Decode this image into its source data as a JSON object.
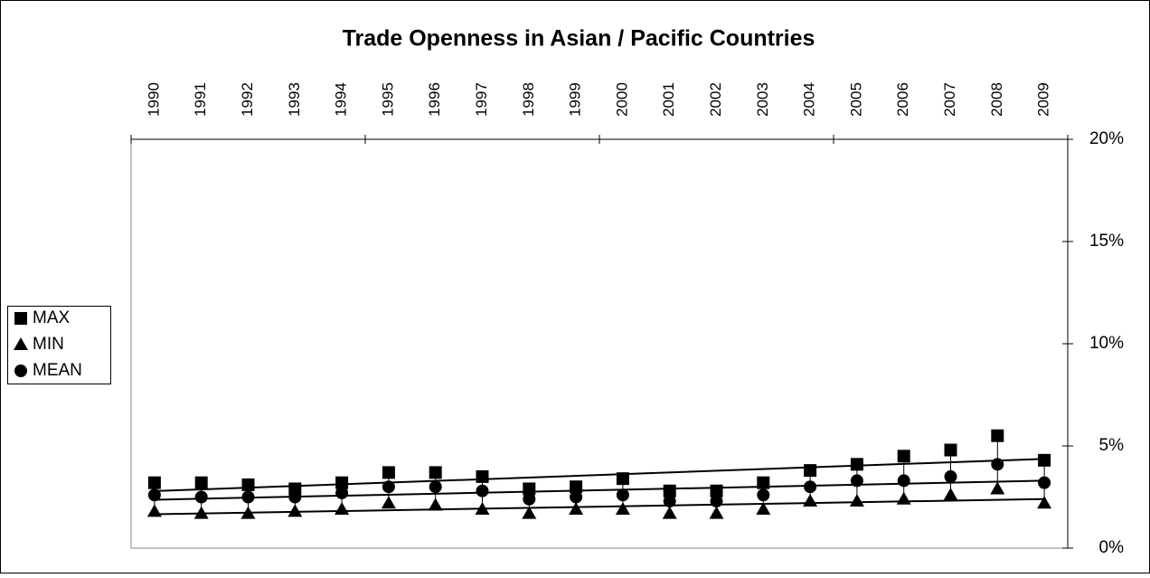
{
  "chart_data": {
    "type": "line",
    "title": "Trade Openness in Asian / Pacific Countries",
    "categories": [
      "1990",
      "1991",
      "1992",
      "1993",
      "1994",
      "1995",
      "1996",
      "1997",
      "1998",
      "1999",
      "2000",
      "2001",
      "2002",
      "2003",
      "2004",
      "2005",
      "2006",
      "2007",
      "2008",
      "2009"
    ],
    "series": [
      {
        "name": "MAX",
        "color": "#000000",
        "marker": "square",
        "values": [
          3.2,
          3.2,
          3.1,
          2.9,
          3.2,
          3.7,
          3.7,
          3.5,
          2.9,
          3.0,
          3.4,
          2.8,
          2.8,
          3.2,
          3.8,
          4.1,
          4.5,
          4.8,
          5.5,
          4.3
        ]
      },
      {
        "name": "MIN",
        "color": "#000000",
        "marker": "triangle",
        "values": [
          1.8,
          1.7,
          1.7,
          1.8,
          1.9,
          2.2,
          2.1,
          1.9,
          1.7,
          1.9,
          1.9,
          1.7,
          1.7,
          1.9,
          2.3,
          2.3,
          2.4,
          2.6,
          2.9,
          2.2
        ]
      },
      {
        "name": "MEAN",
        "color": "#000000",
        "marker": "circle",
        "values": [
          2.6,
          2.5,
          2.5,
          2.5,
          2.7,
          3.0,
          3.0,
          2.8,
          2.4,
          2.5,
          2.6,
          2.3,
          2.3,
          2.6,
          3.0,
          3.3,
          3.3,
          3.5,
          4.1,
          3.2
        ]
      }
    ],
    "ylim": [
      0,
      20
    ],
    "yticks": [
      {
        "value": 0,
        "label": "0%"
      },
      {
        "value": 5,
        "label": "5%"
      },
      {
        "value": 10,
        "label": "10%"
      },
      {
        "value": 15,
        "label": "15%"
      },
      {
        "value": 20,
        "label": "20%"
      }
    ],
    "y_axis_side": "right",
    "x_axis_side": "top",
    "trendlines": true,
    "high_low_lines": true,
    "grid": false,
    "legend": "left"
  }
}
